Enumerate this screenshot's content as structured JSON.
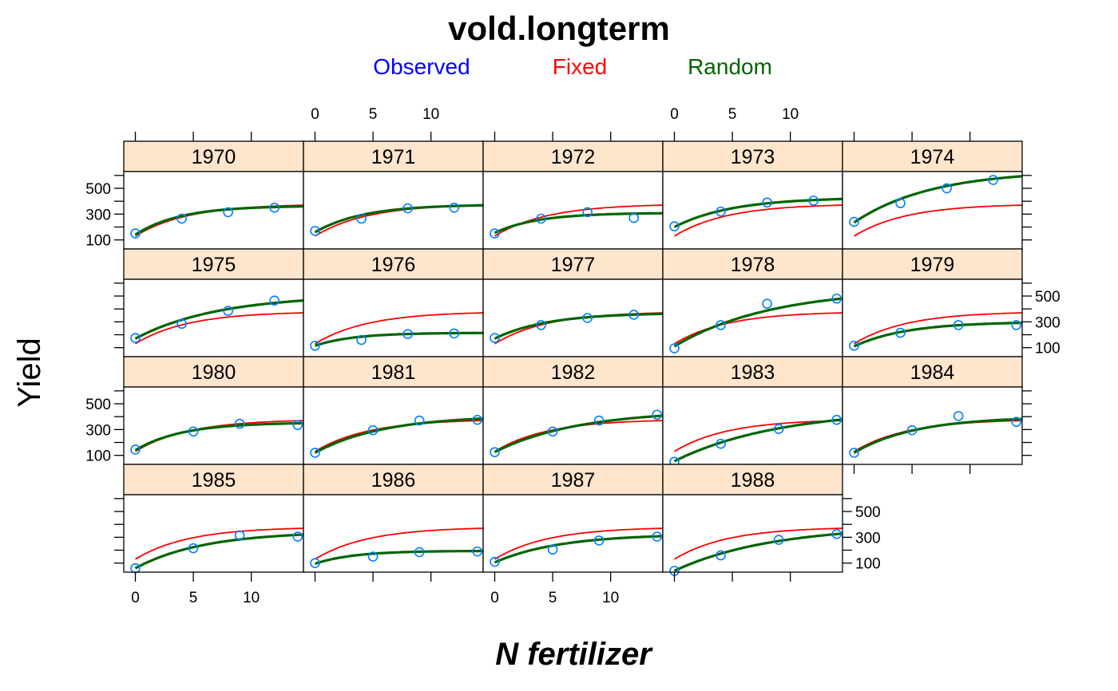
{
  "chart_data": {
    "type": "scatter",
    "title": "vold.longterm",
    "xlabel": "N fertilizer",
    "ylabel": "Yield",
    "layout": {
      "columns": 5,
      "rows": 4,
      "order": "left-to-right, top-to-bottom"
    },
    "xlim": [
      -1,
      14.5
    ],
    "ylim": [
      30,
      630
    ],
    "x_ticks": [
      0,
      5,
      10
    ],
    "y_ticks": [
      100,
      300,
      500
    ],
    "legend": {
      "position": "top",
      "entries": [
        {
          "label": "Observed",
          "color": "#0000ff"
        },
        {
          "label": "Fixed",
          "color": "#ff0000"
        },
        {
          "label": "Random",
          "color": "#006400"
        }
      ]
    },
    "colors": {
      "observed_points": "#0080ff",
      "fixed_line": "#ff0000",
      "random_line": "#006400",
      "strip_background": "#ffe5cc"
    },
    "fixed_curve": {
      "a": 380,
      "b": 130,
      "c": 0.22
    },
    "panels": [
      {
        "label": "1970",
        "x": [
          0,
          4,
          8,
          12
        ],
        "y": [
          150,
          265,
          315,
          350
        ],
        "random": {
          "a": 365,
          "b": 140,
          "c": 0.26
        }
      },
      {
        "label": "1971",
        "x": [
          0,
          4,
          8,
          12
        ],
        "y": [
          170,
          265,
          345,
          350
        ],
        "random": {
          "a": 375,
          "b": 160,
          "c": 0.24
        }
      },
      {
        "label": "1972",
        "x": [
          0,
          4,
          8,
          12
        ],
        "y": [
          150,
          265,
          315,
          270
        ],
        "random": {
          "a": 310,
          "b": 155,
          "c": 0.27
        }
      },
      {
        "label": "1973",
        "x": [
          0,
          4,
          8,
          12
        ],
        "y": [
          205,
          320,
          390,
          405
        ],
        "random": {
          "a": 430,
          "b": 200,
          "c": 0.2
        }
      },
      {
        "label": "1974",
        "x": [
          0,
          4,
          8,
          12
        ],
        "y": [
          240,
          385,
          500,
          565
        ],
        "random": {
          "a": 640,
          "b": 235,
          "c": 0.15
        }
      },
      {
        "label": "1975",
        "x": [
          0,
          4,
          8,
          12
        ],
        "y": [
          175,
          285,
          385,
          465
        ],
        "random": {
          "a": 510,
          "b": 170,
          "c": 0.14
        }
      },
      {
        "label": "1976",
        "x": [
          0,
          4,
          8,
          12
        ],
        "y": [
          115,
          160,
          205,
          210
        ],
        "random": {
          "a": 215,
          "b": 115,
          "c": 0.3
        }
      },
      {
        "label": "1977",
        "x": [
          0,
          4,
          8,
          12
        ],
        "y": [
          175,
          275,
          330,
          355
        ],
        "random": {
          "a": 370,
          "b": 170,
          "c": 0.22
        }
      },
      {
        "label": "1978",
        "x": [
          0,
          4,
          8,
          14
        ],
        "y": [
          95,
          275,
          440,
          480
        ],
        "random": {
          "a": 560,
          "b": 110,
          "c": 0.12
        }
      },
      {
        "label": "1979",
        "x": [
          0,
          4,
          9,
          14
        ],
        "y": [
          115,
          215,
          275,
          275
        ],
        "random": {
          "a": 300,
          "b": 110,
          "c": 0.22
        }
      },
      {
        "label": "1980",
        "x": [
          0,
          5,
          9,
          14
        ],
        "y": [
          145,
          285,
          345,
          335
        ],
        "random": {
          "a": 355,
          "b": 140,
          "c": 0.25
        }
      },
      {
        "label": "1981",
        "x": [
          0,
          5,
          9,
          14
        ],
        "y": [
          120,
          295,
          370,
          375
        ],
        "random": {
          "a": 410,
          "b": 120,
          "c": 0.17
        }
      },
      {
        "label": "1982",
        "x": [
          0,
          5,
          9,
          14
        ],
        "y": [
          125,
          285,
          370,
          415
        ],
        "random": {
          "a": 450,
          "b": 125,
          "c": 0.14
        }
      },
      {
        "label": "1983",
        "x": [
          0,
          4,
          9,
          14
        ],
        "y": [
          50,
          190,
          305,
          375
        ],
        "random": {
          "a": 460,
          "b": 55,
          "c": 0.11
        }
      },
      {
        "label": "1984",
        "x": [
          0,
          5,
          9,
          14
        ],
        "y": [
          120,
          295,
          405,
          360
        ],
        "random": {
          "a": 400,
          "b": 120,
          "c": 0.19
        }
      },
      {
        "label": "1985",
        "x": [
          0,
          5,
          9,
          14
        ],
        "y": [
          60,
          215,
          315,
          305
        ],
        "random": {
          "a": 345,
          "b": 60,
          "c": 0.17
        }
      },
      {
        "label": "1986",
        "x": [
          0,
          5,
          9,
          14
        ],
        "y": [
          100,
          150,
          185,
          190
        ],
        "random": {
          "a": 195,
          "b": 95,
          "c": 0.3
        }
      },
      {
        "label": "1987",
        "x": [
          0,
          5,
          9,
          14
        ],
        "y": [
          110,
          205,
          275,
          305
        ],
        "random": {
          "a": 325,
          "b": 105,
          "c": 0.18
        }
      },
      {
        "label": "1988",
        "x": [
          0,
          4,
          9,
          14
        ],
        "y": [
          40,
          160,
          280,
          325
        ],
        "random": {
          "a": 390,
          "b": 40,
          "c": 0.12
        }
      }
    ]
  }
}
